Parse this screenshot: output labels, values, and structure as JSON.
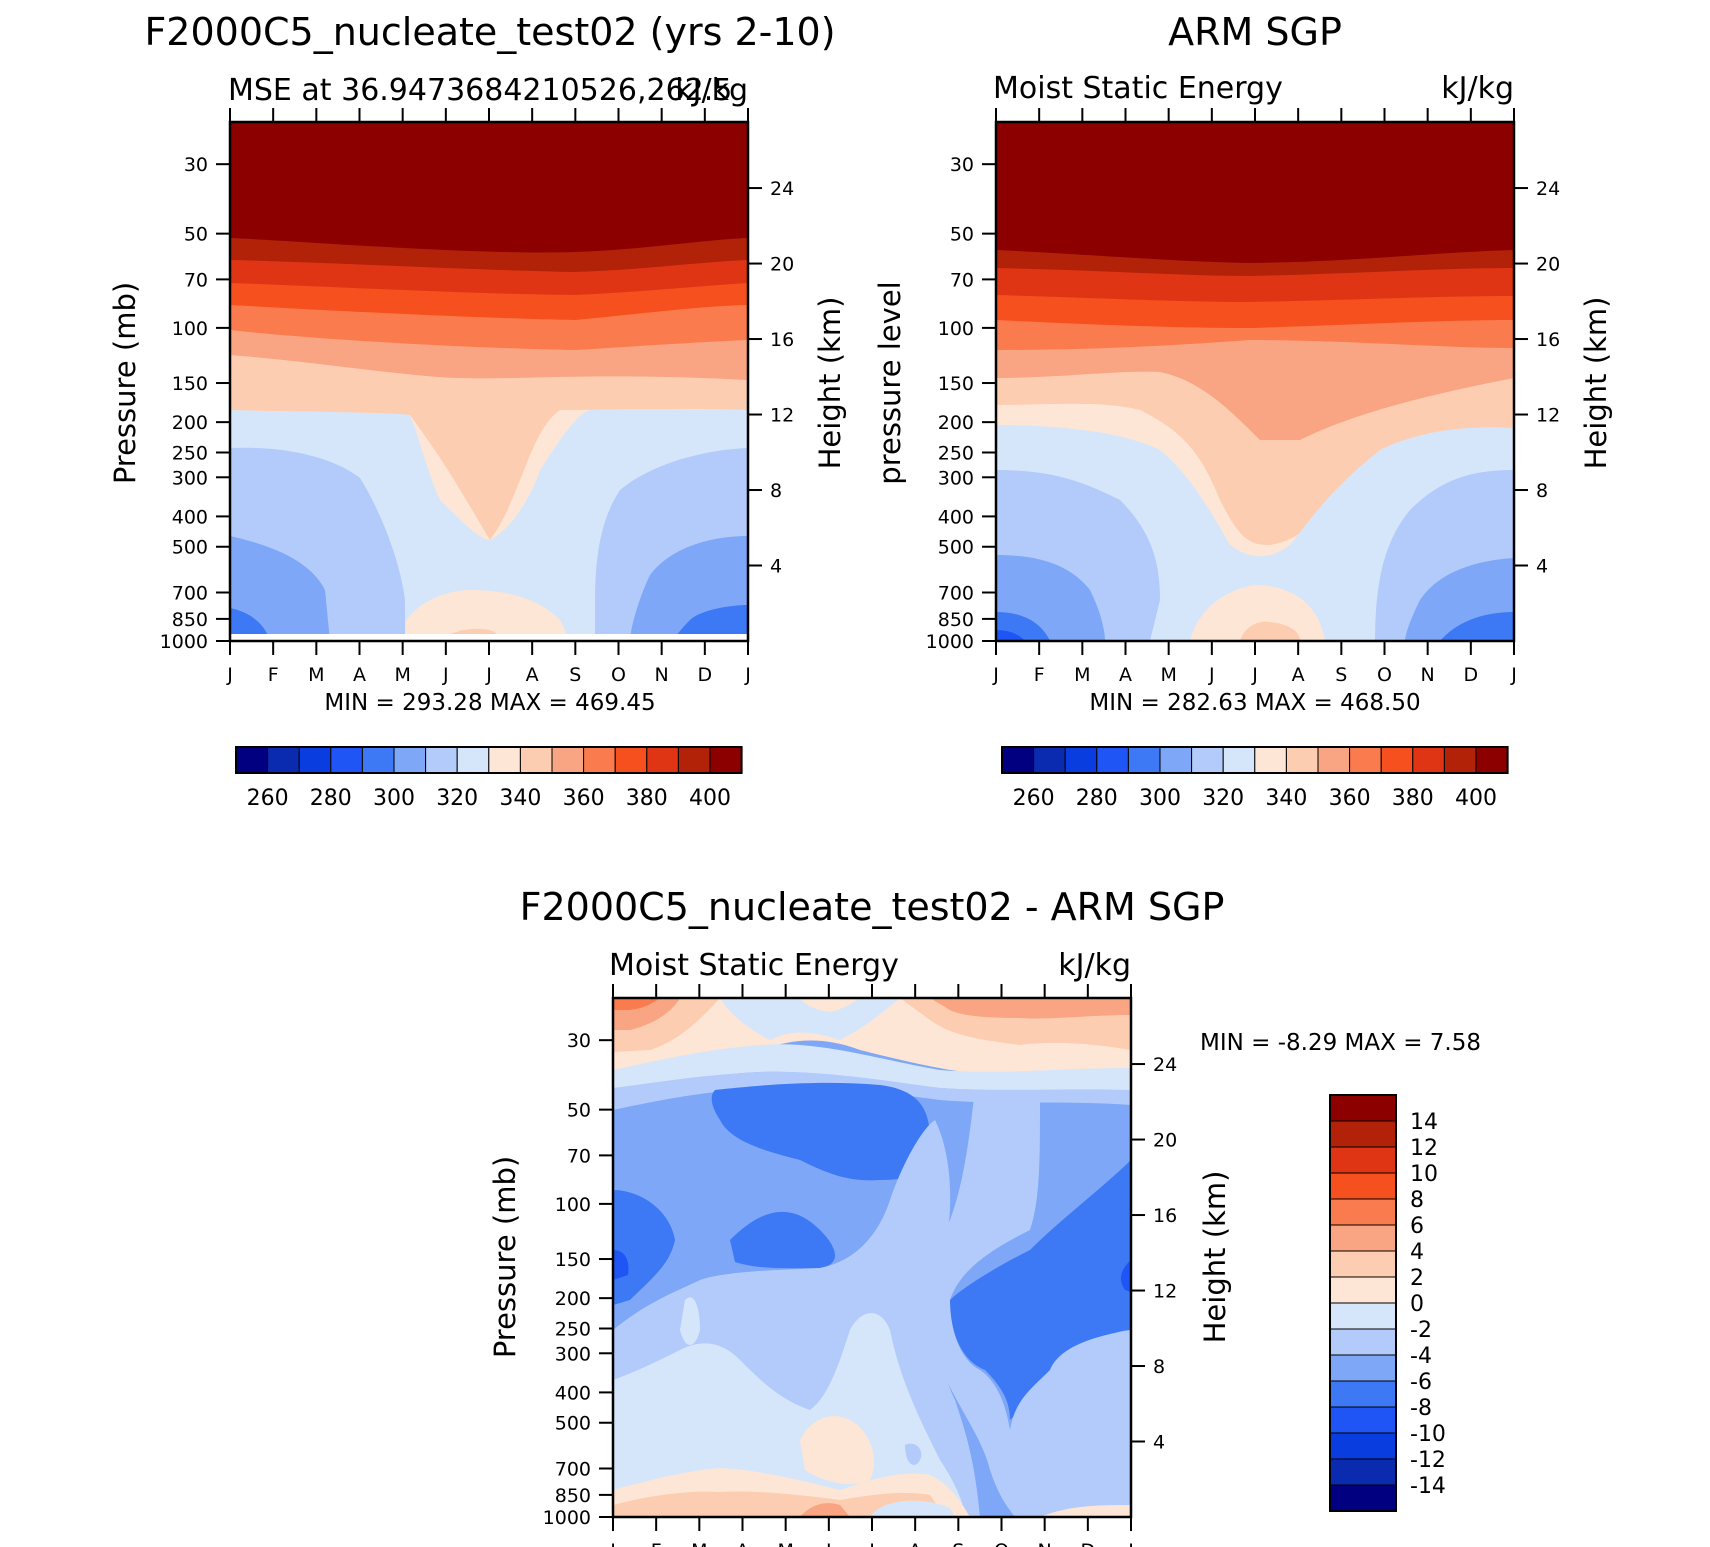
{
  "colors": {
    "mse_scale": [
      "#000080",
      "#0a2bb0",
      "#0a3de0",
      "#1f55f5",
      "#3d78f5",
      "#7ea7f7",
      "#b2cbfa",
      "#d5e6fb",
      "#fde6d6",
      "#fccdb1",
      "#f9a482",
      "#fa7b4d",
      "#f5501e",
      "#e03514",
      "#b22208",
      "#8c0000"
    ],
    "diff_scale": [
      "#000080",
      "#0a2bb0",
      "#0a3de0",
      "#1f55f5",
      "#3d78f5",
      "#7ea7f7",
      "#b2cbfa",
      "#d5e6fb",
      "#fde6d6",
      "#fccdb1",
      "#f9a482",
      "#fa7b4d",
      "#f5501e",
      "#e03514",
      "#b22208",
      "#8c0000"
    ]
  },
  "panel_left": {
    "title": "F2000C5_nucleate_test02 (yrs 2-10)",
    "left_sub": "MSE at 36.9473684210526,262.5",
    "units": "kJ/kg",
    "ylabel_left": "Pressure (mb)",
    "ylabel_right": "Height (km)",
    "minmax": "MIN = 293.28 MAX = 469.45"
  },
  "panel_right": {
    "title": "ARM SGP",
    "left_sub": "Moist Static Energy",
    "units": "kJ/kg",
    "ylabel_left": "pressure level",
    "ylabel_right": "Height (km)",
    "minmax": "MIN = 282.63 MAX = 468.50"
  },
  "panel_bottom": {
    "title": "F2000C5_nucleate_test02 - ARM SGP",
    "left_sub": "Moist Static Energy",
    "units": "kJ/kg",
    "ylabel_left": "Pressure (mb)",
    "ylabel_right": "Height (km)",
    "minmax": "MIN = -8.29 MAX = 7.58"
  },
  "chart_data": [
    {
      "type": "heatmap",
      "title": "F2000C5_nucleate_test02 (yrs 2-10)",
      "subtitle": "MSE at 36.9473684210526,262.5",
      "units": "kJ/kg",
      "x": [
        "J",
        "F",
        "M",
        "A",
        "M",
        "J",
        "J",
        "A",
        "S",
        "O",
        "N",
        "D",
        "J"
      ],
      "y_pressure_ticks": [
        30,
        50,
        70,
        100,
        150,
        200,
        250,
        300,
        400,
        500,
        700,
        850,
        1000
      ],
      "y_height_ticks": [
        24,
        20,
        16,
        12,
        8,
        4
      ],
      "ylabel": "Pressure (mb)",
      "ylabel_right": "Height (km)",
      "min": 293.28,
      "max": 469.45,
      "colorbar_labels": [
        "260",
        "280",
        "300",
        "320",
        "340",
        "360",
        "380",
        "400"
      ]
    },
    {
      "type": "heatmap",
      "title": "ARM SGP",
      "subtitle": "Moist Static Energy",
      "units": "kJ/kg",
      "x": [
        "J",
        "F",
        "M",
        "A",
        "M",
        "J",
        "J",
        "A",
        "S",
        "O",
        "N",
        "D",
        "J"
      ],
      "y_pressure_ticks": [
        30,
        50,
        70,
        100,
        150,
        200,
        250,
        300,
        400,
        500,
        700,
        850,
        1000
      ],
      "y_height_ticks": [
        24,
        20,
        16,
        12,
        8,
        4
      ],
      "ylabel": "pressure level",
      "ylabel_right": "Height (km)",
      "min": 282.63,
      "max": 468.5,
      "colorbar_labels": [
        "260",
        "280",
        "300",
        "320",
        "340",
        "360",
        "380",
        "400"
      ]
    },
    {
      "type": "heatmap",
      "title": "F2000C5_nucleate_test02 - ARM SGP",
      "subtitle": "Moist Static Energy",
      "units": "kJ/kg",
      "x": [
        "J",
        "F",
        "M",
        "A",
        "M",
        "J",
        "J",
        "A",
        "S",
        "O",
        "N",
        "D",
        "J"
      ],
      "y_pressure_ticks": [
        30,
        50,
        70,
        100,
        150,
        200,
        250,
        300,
        400,
        500,
        700,
        850,
        1000
      ],
      "y_height_ticks": [
        24,
        20,
        16,
        12,
        8,
        4
      ],
      "ylabel": "Pressure (mb)",
      "ylabel_right": "Height (km)",
      "min": -8.29,
      "max": 7.58,
      "colorbar_labels": [
        "14",
        "12",
        "10",
        "8",
        "6",
        "4",
        "2",
        "0",
        "-2",
        "-4",
        "-6",
        "-8",
        "-10",
        "-12",
        "-14"
      ]
    }
  ]
}
